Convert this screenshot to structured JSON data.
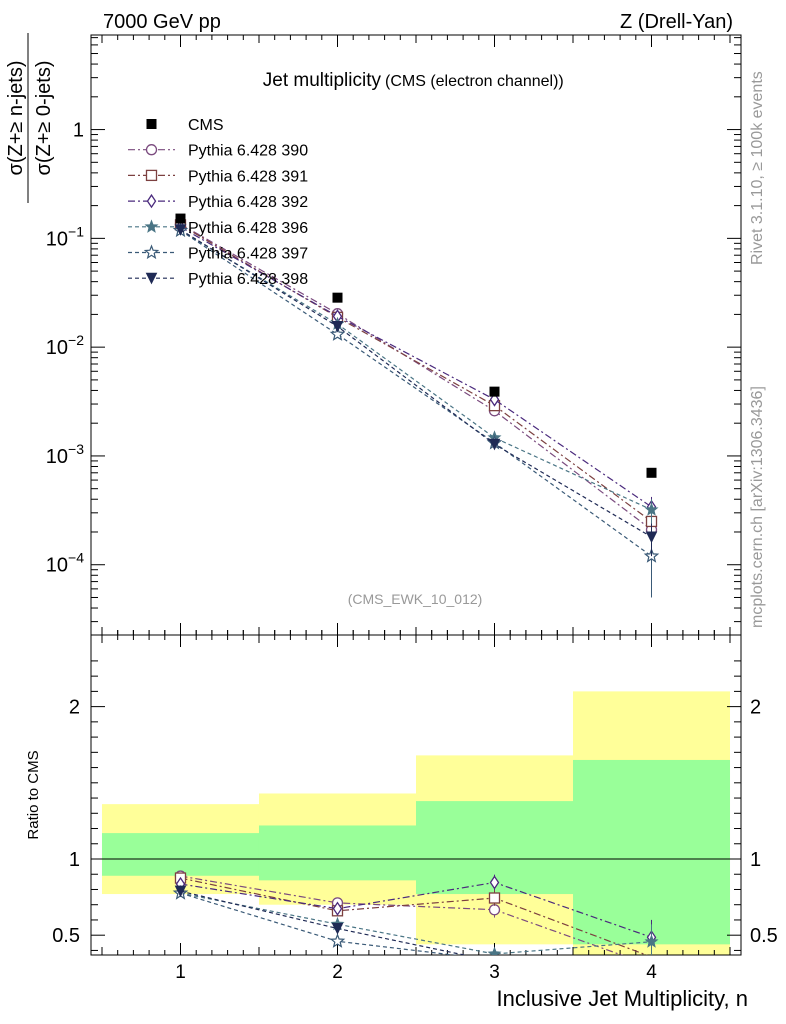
{
  "header": {
    "left": "7000 GeV pp",
    "right": "Z (Drell-Yan)"
  },
  "side_labels": {
    "rivet": "Rivet 3.1.10, ≥ 100k events",
    "mcplots": "mcplots.cern.ch [arXiv:1306.3436]"
  },
  "chart_data": {
    "type": "line",
    "title": "Jet multiplicity",
    "subtitle": "(CMS (electron channel))",
    "analysis_tag": "(CMS_EWK_10_012)",
    "xlabel": "Inclusive Jet Multiplicity, n",
    "ylabel_num": "σ(Z+≥ n-jets)",
    "ylabel_den": "σ(Z+≥ 0-jets)",
    "ratio_ylabel": "Ratio to CMS",
    "x": [
      1,
      2,
      3,
      4
    ],
    "xlim": [
      0.43,
      4.57
    ],
    "x_ticks": [
      "1",
      "2",
      "3",
      "4"
    ],
    "main_ylim": [
      2.26e-05,
      7.4
    ],
    "y_log": true,
    "main_y_ticks": [
      {
        "value": 1,
        "label": "1"
      },
      {
        "value": 0.1,
        "label": "10",
        "exp": "−1"
      },
      {
        "value": 0.01,
        "label": "10",
        "exp": "−2"
      },
      {
        "value": 0.001,
        "label": "10",
        "exp": "−3"
      },
      {
        "value": 0.0001,
        "label": "10",
        "exp": "−4"
      }
    ],
    "ratio_ylim": [
      0.37,
      2.47
    ],
    "ratio_y_ticks": [
      {
        "value": 0.5,
        "label": "0.5"
      },
      {
        "value": 1,
        "label": "1"
      },
      {
        "value": 2,
        "label": "2"
      }
    ],
    "data": {
      "name": "CMS",
      "values": [
        0.152,
        0.0285,
        0.0039,
        0.0007
      ],
      "color": "#000000",
      "stat_band": [
        [
          0.89,
          1.17
        ],
        [
          0.86,
          1.22
        ],
        [
          0.77,
          1.38
        ],
        [
          0.44,
          1.65
        ]
      ],
      "total_band": [
        [
          0.77,
          1.36
        ],
        [
          0.7,
          1.43
        ],
        [
          0.44,
          1.68
        ],
        [
          0.3,
          2.1
        ]
      ],
      "band_colors": {
        "inner": "#99ff99",
        "outer": "#ffff99"
      }
    },
    "series": [
      {
        "name": "Pythia 6.428 390",
        "marker": "circle-open",
        "line": "dashdot",
        "color": "#7b4b7f",
        "values": [
          0.135,
          0.0203,
          0.0026,
          0.00021
        ],
        "errors": [
          0.003,
          0.0007,
          0.0002,
          5e-05
        ],
        "ratio": [
          0.888,
          0.712,
          0.667,
          0.3
        ]
      },
      {
        "name": "Pythia 6.428 391",
        "marker": "square-open",
        "line": "dashdot",
        "color": "#7c4040",
        "values": [
          0.133,
          0.0188,
          0.0029,
          0.00025
        ],
        "errors": [
          0.003,
          0.0007,
          0.0002,
          5e-05
        ],
        "ratio": [
          0.875,
          0.66,
          0.744,
          0.357
        ]
      },
      {
        "name": "Pythia 6.428 392",
        "marker": "diamond-open",
        "line": "dashdot",
        "color": "#4a2a7d",
        "values": [
          0.127,
          0.0192,
          0.0033,
          0.00034
        ],
        "errors": [
          0.003,
          0.0007,
          0.0002,
          8e-05
        ],
        "ratio": [
          0.836,
          0.674,
          0.846,
          0.486
        ]
      },
      {
        "name": "Pythia 6.428 396",
        "marker": "star-filled",
        "line": "dashed",
        "color": "#4a7585",
        "values": [
          0.118,
          0.0163,
          0.00147,
          0.00032
        ],
        "errors": [
          0.003,
          0.0006,
          0.0001,
          8e-05
        ],
        "ratio": [
          0.776,
          0.572,
          0.377,
          0.457
        ]
      },
      {
        "name": "Pythia 6.428 397",
        "marker": "star-open",
        "line": "dashed",
        "color": "#3a5a77",
        "values": [
          0.118,
          0.0131,
          0.00132,
          0.00012
        ],
        "errors": [
          0.003,
          0.0006,
          0.0001,
          7e-05
        ],
        "ratio": [
          0.776,
          0.46,
          0.338,
          0.171
        ]
      },
      {
        "name": "Pythia 6.428 398",
        "marker": "triangle-down-filled",
        "line": "dashed",
        "color": "#1f2a55",
        "values": [
          0.12,
          0.0155,
          0.00128,
          0.00018
        ],
        "errors": [
          0.003,
          0.0006,
          0.0001,
          6e-05
        ],
        "ratio": [
          0.789,
          0.544,
          0.328,
          0.257
        ]
      }
    ]
  }
}
